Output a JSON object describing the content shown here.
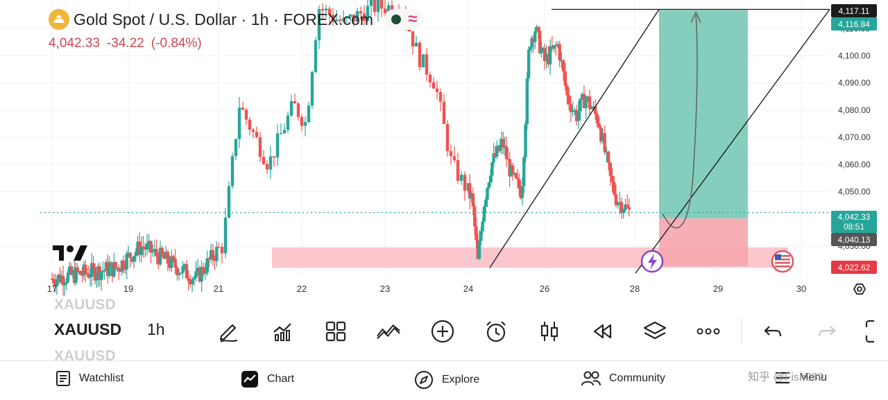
{
  "header": {
    "title": "Gold Spot / U.S. Dollar · 1h · FOREX.com",
    "price": "4,042.33",
    "change": "-34.22",
    "change_pct": "(-0.84%)"
  },
  "colors": {
    "up": "#26a69a",
    "down": "#ef5350",
    "target_zone": "#7ecbb9",
    "stop_zone": "#f6a5ad",
    "support_zone": "#fbc4ca",
    "price_line": "#26a69a"
  },
  "chart_data": {
    "type": "candlestick",
    "symbol": "XAUUSD",
    "timeframe": "1h",
    "ylim": [
      4019,
      4118
    ],
    "y_ticks": [
      "4,110.00",
      "4,100.00",
      "4,090.00",
      "4,080.00",
      "4,070.00",
      "4,060.00",
      "4,050.00",
      "4,030.00"
    ],
    "x_ticks": [
      "17",
      "19",
      "21",
      "22",
      "23",
      "24",
      "26",
      "28",
      "29",
      "30"
    ],
    "price_labels": {
      "high_line": "4,117.11",
      "target": "4,116.84",
      "current": "4,042.33",
      "countdown": "08:51",
      "entry": "4,040.13",
      "stop": "4,022.62"
    },
    "price_levels": {
      "high_line": 4117.11,
      "target": 4116.84,
      "current": 4042.33,
      "entry": 4040.13,
      "stop": 4022.62,
      "support_top": 4029.5,
      "support_bottom": 4022.0
    },
    "pivots": [
      {
        "day": 17.0,
        "price": 4018
      },
      {
        "day": 18.7,
        "price": 4022
      },
      {
        "day": 19.3,
        "price": 4030
      },
      {
        "day": 20.1,
        "price": 4022
      },
      {
        "day": 20.5,
        "price": 4018
      },
      {
        "day": 21.05,
        "price": 4030
      },
      {
        "day": 21.25,
        "price": 4082
      },
      {
        "day": 21.6,
        "price": 4060
      },
      {
        "day": 21.9,
        "price": 4082
      },
      {
        "day": 22.05,
        "price": 4075
      },
      {
        "day": 22.2,
        "price": 4118
      },
      {
        "day": 22.5,
        "price": 4112
      },
      {
        "day": 22.85,
        "price": 4118
      },
      {
        "day": 23.2,
        "price": 4118
      },
      {
        "day": 23.4,
        "price": 4100
      },
      {
        "day": 23.6,
        "price": 4090
      },
      {
        "day": 23.8,
        "price": 4060
      },
      {
        "day": 24.0,
        "price": 4050
      },
      {
        "day": 24.1,
        "price": 4047
      },
      {
        "day": 24.25,
        "price": 4024
      },
      {
        "day": 24.4,
        "price": 4045
      },
      {
        "day": 24.6,
        "price": 4060
      },
      {
        "day": 24.9,
        "price": 4068
      },
      {
        "day": 25.15,
        "price": 4055
      },
      {
        "day": 25.4,
        "price": 4050
      },
      {
        "day": 25.6,
        "price": 4105
      },
      {
        "day": 25.75,
        "price": 4110
      },
      {
        "day": 26.0,
        "price": 4098
      },
      {
        "day": 26.3,
        "price": 4104
      },
      {
        "day": 26.5,
        "price": 4085
      },
      {
        "day": 26.7,
        "price": 4078
      },
      {
        "day": 26.9,
        "price": 4085
      },
      {
        "day": 27.2,
        "price": 4076
      },
      {
        "day": 27.45,
        "price": 4055
      },
      {
        "day": 27.6,
        "price": 4047
      },
      {
        "day": 27.75,
        "price": 4045
      },
      {
        "day": 27.9,
        "price": 4042
      }
    ]
  },
  "toolbar": {
    "symbol": "XAUUSD",
    "timeframe": "1h"
  },
  "nav": {
    "watchlist": "Watchlist",
    "chart": "Chart",
    "explore": "Explore",
    "community": "Community",
    "menu": "Menu"
  },
  "watermark": "知乎 @Fish069"
}
